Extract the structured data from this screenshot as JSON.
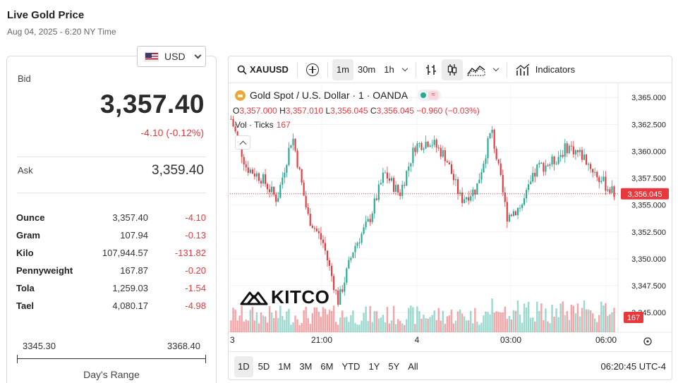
{
  "header": {
    "title": "Live Gold Price",
    "timestamp": "Aug 04, 2025 - 6:20 NY Time"
  },
  "currency": {
    "selected": "USD",
    "icon": "us-flag-icon"
  },
  "quote": {
    "bid_label": "Bid",
    "bid": "3,357.40",
    "change": "-4.10 (-0.12%)",
    "ask_label": "Ask",
    "ask": "3,359.40"
  },
  "units": [
    {
      "name": "Ounce",
      "price": "3,357.40",
      "change": "-4.10"
    },
    {
      "name": "Gram",
      "price": "107.94",
      "change": "-0.13"
    },
    {
      "name": "Kilo",
      "price": "107,944.57",
      "change": "-131.82"
    },
    {
      "name": "Pennyweight",
      "price": "167.87",
      "change": "-0.20"
    },
    {
      "name": "Tola",
      "price": "1,259.03",
      "change": "-1.54"
    },
    {
      "name": "Tael",
      "price": "4,080.17",
      "change": "-4.98"
    }
  ],
  "days_range": {
    "low": "3345.30",
    "high": "3368.40",
    "label": "Day's Range"
  },
  "toolbar": {
    "symbol": "XAUUSD",
    "intervals": [
      "1m",
      "30m",
      "1h"
    ],
    "active_interval": "1m",
    "indicators_label": "Indicators"
  },
  "legend": {
    "title": "Gold Spot / U.S. Dollar · 1 · OANDA",
    "o_label": "O",
    "o": "3,357.000",
    "h_label": "H",
    "h": "3,357.010",
    "l_label": "L",
    "l": "3,356.045",
    "c_label": "C",
    "c": "3,356.045",
    "chg": "−0.960 (−0.03%)",
    "vol_label": "Vol · Ticks",
    "vol": "167"
  },
  "colors": {
    "up": "#22ab94",
    "down": "#e8383d",
    "accent": "#e8383d"
  },
  "chart_data": {
    "type": "line",
    "price_axis_ticks": [
      "3,365.000",
      "3,362.500",
      "3,360.000",
      "3,357.500",
      "3,355.000",
      "3,352.500",
      "3,350.000",
      "3,347.500",
      "3,345.000"
    ],
    "time_axis_ticks": [
      "3",
      "21:00",
      "4",
      "03:00",
      "06:00"
    ],
    "ylim": [
      3343.5,
      3366.0
    ],
    "current_price_label": "3,356.045",
    "current_volume_label": "167",
    "series": [
      {
        "x": [
          "18:00",
          "18:30",
          "19:00",
          "19:30",
          "20:00",
          "20:30",
          "21:00",
          "21:30",
          "22:00",
          "22:30",
          "23:00",
          "23:30",
          "00:00",
          "00:30",
          "01:00",
          "01:30",
          "02:00",
          "02:30",
          "03:00",
          "03:30",
          "04:00",
          "04:30",
          "05:00",
          "05:30",
          "06:00",
          "06:20"
        ],
        "values": [
          3363.0,
          3358.5,
          3357.5,
          3355.5,
          3361.5,
          3354.0,
          3351.5,
          3346.0,
          3351.0,
          3353.5,
          3358.0,
          3356.0,
          3360.5,
          3361.0,
          3359.5,
          3355.5,
          3356.5,
          3362.0,
          3354.0,
          3355.0,
          3358.5,
          3359.0,
          3360.5,
          3359.5,
          3357.5,
          3356.045
        ]
      }
    ],
    "ranges": [
      "1D",
      "5D",
      "1M",
      "3M",
      "6M",
      "YTD",
      "1Y",
      "5Y",
      "All"
    ],
    "active_range": "1D",
    "clock": "06:20:45 UTC-4"
  },
  "watermark": "KITCO"
}
